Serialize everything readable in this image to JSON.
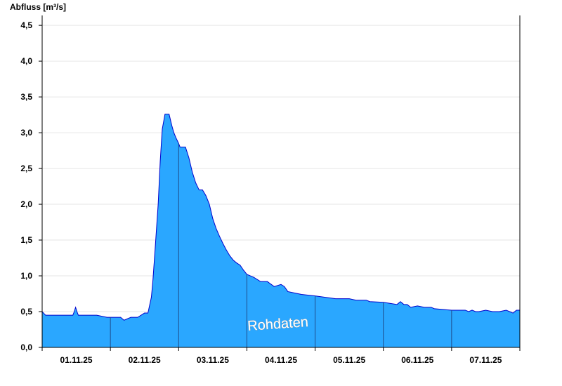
{
  "chart_data": {
    "type": "area",
    "title": "",
    "xlabel": "",
    "ylabel": "Abfluss [m³/s]",
    "ylim": [
      0,
      4.6
    ],
    "grid": true,
    "legend": "none",
    "watermark": "Rohdaten",
    "colors": {
      "fill": "#2aa7ff",
      "line": "#0000cc",
      "day_separator": "#1e4d8c"
    },
    "x_day_labels": [
      "01.11.25",
      "02.11.25",
      "03.11.25",
      "04.11.25",
      "05.11.25",
      "06.11.25",
      "07.11.25"
    ],
    "y_ticks": [
      {
        "v": 0,
        "label": "0,0"
      },
      {
        "v": 0.5,
        "label": "0,5"
      },
      {
        "v": 1.0,
        "label": "1,0"
      },
      {
        "v": 1.5,
        "label": "1,5"
      },
      {
        "v": 2.0,
        "label": "2,0"
      },
      {
        "v": 2.5,
        "label": "2,5"
      },
      {
        "v": 3.0,
        "label": "3,0"
      },
      {
        "v": 3.5,
        "label": "3,5"
      },
      {
        "v": 4.0,
        "label": "4,0"
      },
      {
        "v": 4.5,
        "label": "4,5"
      }
    ],
    "x_unit": "days since 01.11.25 00:00",
    "xlim": [
      0,
      7
    ],
    "series": [
      {
        "x": [
          0,
          0.03,
          0.05,
          0.1,
          0.2,
          0.3,
          0.4,
          0.45,
          0.47,
          0.49,
          0.51,
          0.53,
          0.6,
          0.8,
          0.95,
          1.0,
          1.1,
          1.15,
          1.2,
          1.3,
          1.4,
          1.5,
          1.55,
          1.6,
          1.62,
          1.65,
          1.7,
          1.73,
          1.76,
          1.8,
          1.83,
          1.86,
          1.9,
          1.93,
          1.96,
          2.0,
          2.02,
          2.05,
          2.1,
          2.15,
          2.2,
          2.25,
          2.3,
          2.35,
          2.4,
          2.45,
          2.5,
          2.55,
          2.6,
          2.65,
          2.7,
          2.75,
          2.8,
          2.85,
          2.9,
          2.95,
          3.0,
          3.1,
          3.2,
          3.3,
          3.4,
          3.5,
          3.55,
          3.6,
          3.7,
          3.8,
          4.0,
          4.3,
          4.5,
          4.6,
          4.65,
          4.7,
          4.75,
          4.8,
          5.0,
          5.2,
          5.25,
          5.3,
          5.35,
          5.4,
          5.5,
          5.6,
          5.65,
          5.7,
          5.75,
          6.0,
          6.2,
          6.25,
          6.3,
          6.35,
          6.4,
          6.5,
          6.6,
          6.7,
          6.8,
          6.85,
          6.9,
          6.95,
          7.0
        ],
        "y": [
          0.5,
          0.47,
          0.45,
          0.45,
          0.45,
          0.45,
          0.45,
          0.45,
          0.5,
          0.56,
          0.5,
          0.45,
          0.45,
          0.45,
          0.42,
          0.42,
          0.42,
          0.42,
          0.38,
          0.42,
          0.42,
          0.48,
          0.48,
          0.7,
          0.9,
          1.3,
          2.0,
          2.6,
          3.05,
          3.26,
          3.26,
          3.26,
          3.1,
          3.0,
          2.93,
          2.85,
          2.8,
          2.8,
          2.8,
          2.65,
          2.45,
          2.3,
          2.2,
          2.2,
          2.12,
          2.0,
          1.8,
          1.66,
          1.55,
          1.45,
          1.36,
          1.28,
          1.22,
          1.18,
          1.15,
          1.08,
          1.02,
          0.98,
          0.92,
          0.92,
          0.85,
          0.88,
          0.85,
          0.78,
          0.76,
          0.74,
          0.72,
          0.68,
          0.68,
          0.66,
          0.66,
          0.66,
          0.66,
          0.64,
          0.63,
          0.6,
          0.64,
          0.6,
          0.6,
          0.56,
          0.58,
          0.56,
          0.56,
          0.56,
          0.54,
          0.52,
          0.52,
          0.5,
          0.52,
          0.5,
          0.5,
          0.52,
          0.5,
          0.5,
          0.52,
          0.5,
          0.48,
          0.52,
          0.52
        ]
      }
    ]
  }
}
